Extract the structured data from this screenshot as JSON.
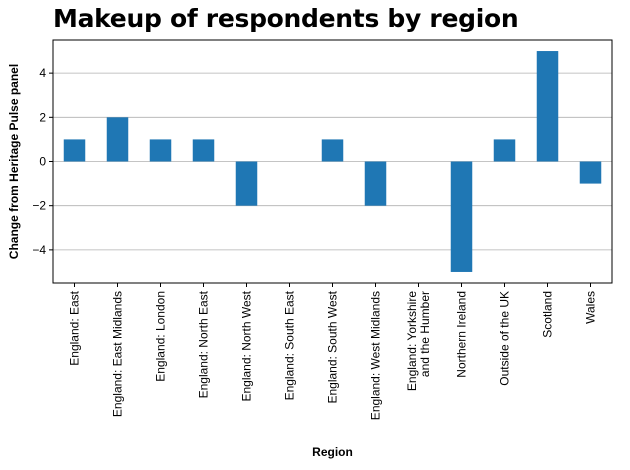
{
  "chart_data": {
    "type": "bar",
    "title": "Makeup of respondents by region",
    "xlabel": "Region",
    "ylabel": "Change from Heritage Pulse panel",
    "categories": [
      "England: East",
      "England: East Midlands",
      "England: London",
      "England: North East",
      "England: North West",
      "England: South East",
      "England: South West",
      "England: West Midlands",
      "England: Yorkshire\nand the Humber",
      "Northern Ireland",
      "Outside of the UK",
      "Scotland",
      "Wales"
    ],
    "values": [
      1,
      2,
      1,
      1,
      -2,
      0,
      1,
      -2,
      0,
      -5,
      1,
      5,
      -1
    ],
    "ylim": [
      -5.5,
      5.5
    ],
    "yticks": [
      -4,
      -2,
      0,
      2,
      4
    ],
    "grid": "horizontal",
    "color": "#1f77b4"
  }
}
